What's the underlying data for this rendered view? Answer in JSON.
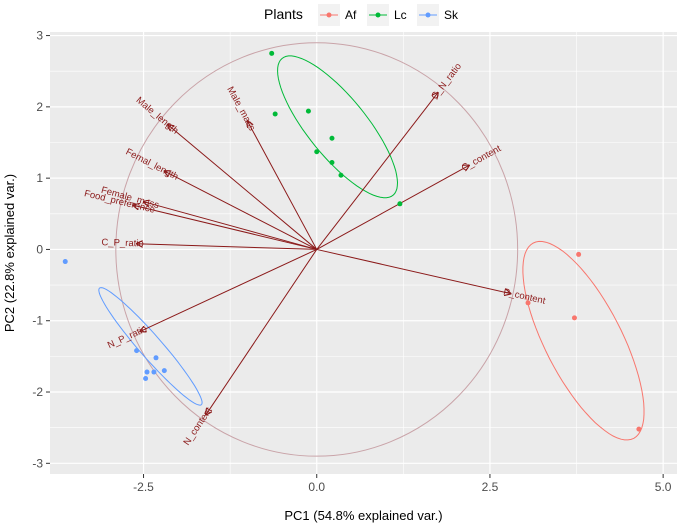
{
  "chart_data": {
    "type": "scatter",
    "title": "",
    "xlabel": "PC1 (54.8% explained var.)",
    "ylabel": "PC2 (22.8% explained var.)",
    "xlim": [
      -3.85,
      5.2
    ],
    "ylim": [
      -3.15,
      3.05
    ],
    "x_ticks": [
      -2.5,
      0.0,
      2.5,
      5.0
    ],
    "x_tick_labels": [
      "-2.5",
      "0.0",
      "2.5",
      "5.0"
    ],
    "y_ticks": [
      -3,
      -2,
      -1,
      0,
      1,
      2,
      3
    ],
    "y_tick_labels": [
      "-3",
      "-2",
      "-1",
      "0",
      "1",
      "2",
      "3"
    ],
    "grid": true,
    "legend": {
      "title": "Plants",
      "position": "top"
    },
    "circle": {
      "center": [
        0,
        0
      ],
      "radius": 2.9
    },
    "series": [
      {
        "name": "Af",
        "color": "#f8766d",
        "points": [
          [
            3.78,
            -0.07
          ],
          [
            3.72,
            -0.96
          ],
          [
            4.65,
            -2.52
          ],
          [
            3.05,
            -0.75
          ]
        ],
        "ellipse": {
          "center": [
            3.85,
            -1.28
          ],
          "rx": 1.55,
          "ry": 0.55,
          "angle_deg": -62
        }
      },
      {
        "name": "Lc",
        "color": "#00ba38",
        "points": [
          [
            -0.65,
            2.75
          ],
          [
            -0.6,
            1.9
          ],
          [
            -0.12,
            1.94
          ],
          [
            0.22,
            1.56
          ],
          [
            0.0,
            1.37
          ],
          [
            0.22,
            1.22
          ],
          [
            0.35,
            1.04
          ],
          [
            1.2,
            0.64
          ]
        ],
        "ellipse": {
          "center": [
            0.3,
            1.72
          ],
          "rx": 1.25,
          "ry": 0.42,
          "angle_deg": -50
        }
      },
      {
        "name": "Sk",
        "color": "#619cff",
        "points": [
          [
            -3.63,
            -0.17
          ],
          [
            -2.32,
            -1.52
          ],
          [
            -2.35,
            -1.72
          ],
          [
            -2.45,
            -1.72
          ],
          [
            -2.2,
            -1.7
          ],
          [
            -2.47,
            -1.81
          ],
          [
            -2.6,
            -1.42
          ]
        ],
        "ellipse": {
          "center": [
            -2.4,
            -1.36
          ],
          "rx": 1.1,
          "ry": 0.16,
          "angle_deg": -48
        }
      }
    ],
    "loadings": [
      {
        "name": "Male_mass",
        "x": -1.0,
        "y": 1.8
      },
      {
        "name": "Male_length",
        "x": -2.15,
        "y": 1.75
      },
      {
        "name": "Femal_length",
        "x": -2.2,
        "y": 1.1
      },
      {
        "name": "Female_mass",
        "x": -2.5,
        "y": 0.67
      },
      {
        "name": "Food_preference",
        "x": -2.65,
        "y": 0.62
      },
      {
        "name": "C_P_ratio",
        "x": -2.6,
        "y": 0.08
      },
      {
        "name": "N_P_ratio",
        "x": -2.55,
        "y": -1.15
      },
      {
        "name": "N_content",
        "x": -1.6,
        "y": -2.32
      },
      {
        "name": "C_N_ratio",
        "x": 1.75,
        "y": 2.2
      },
      {
        "name": "C_content",
        "x": 2.2,
        "y": 1.18
      },
      {
        "name": "P_content",
        "x": 2.8,
        "y": -0.62
      }
    ]
  }
}
